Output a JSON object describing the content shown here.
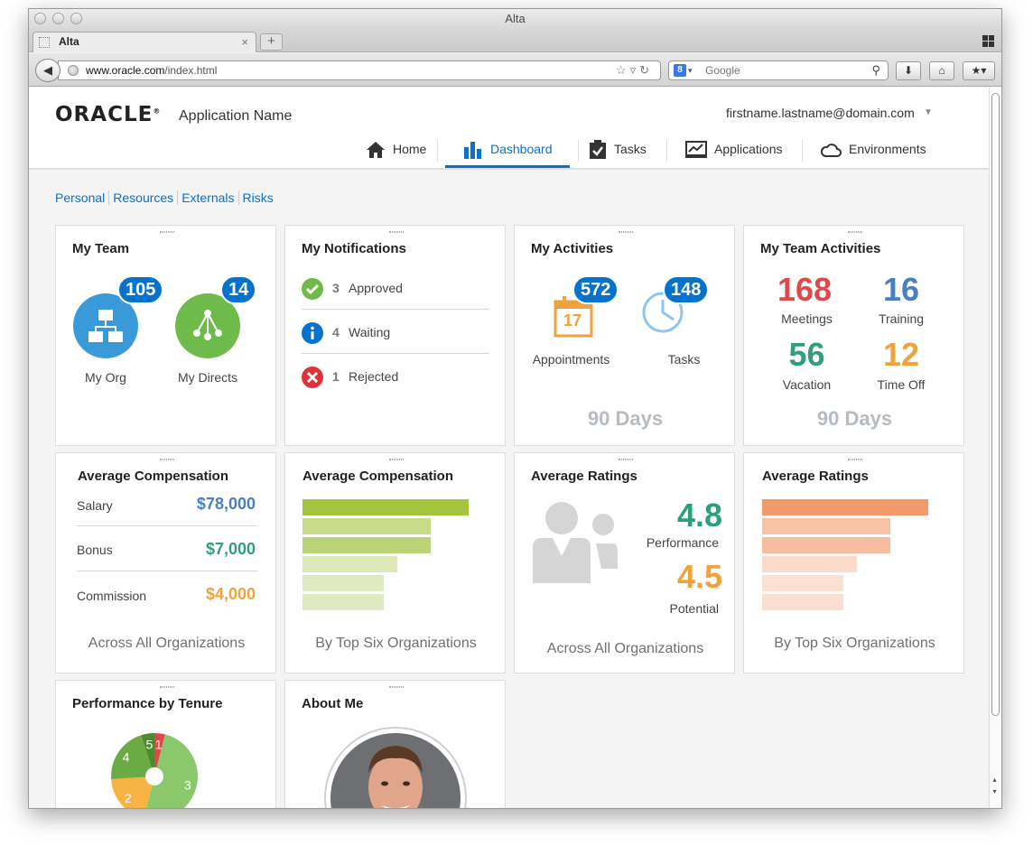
{
  "browser": {
    "window_title": "Alta",
    "tab_title": "Alta",
    "tab_close": "×",
    "new_tab": "+",
    "url_host": "www.oracle.com",
    "url_path": "/index.html",
    "search_placeholder": "Google"
  },
  "app": {
    "logo": "ORACLE",
    "logo_mark": "®",
    "name": "Application Name",
    "user": "firstname.lastname@domain.com",
    "nav": [
      {
        "label": "Home",
        "icon": "home-icon"
      },
      {
        "label": "Dashboard",
        "icon": "bar-chart-icon",
        "active": true
      },
      {
        "label": "Tasks",
        "icon": "clipboard-check-icon"
      },
      {
        "label": "Applications",
        "icon": "monitor-chart-icon"
      },
      {
        "label": "Environments",
        "icon": "cloud-icon"
      }
    ],
    "subnav": [
      "Personal",
      "Resources",
      "Externals",
      "Risks"
    ]
  },
  "colors": {
    "accent": "#0572ce",
    "green": "#2ea079",
    "orange": "#f0a23c",
    "red": "#e0484a",
    "blue": "#4a7fc1",
    "gray": "#b6bcc2"
  },
  "cards": {
    "my_team": {
      "title": "My Team",
      "org": {
        "label": "My Org",
        "count": "105"
      },
      "directs": {
        "label": "My Directs",
        "count": "14"
      }
    },
    "notifications": {
      "title": "My Notifications",
      "items": [
        {
          "count": "3",
          "label": "Approved",
          "icon": "check-circle-icon"
        },
        {
          "count": "4",
          "label": "Waiting",
          "icon": "info-circle-icon"
        },
        {
          "count": "1",
          "label": "Rejected",
          "icon": "x-circle-icon"
        }
      ]
    },
    "activities": {
      "title": "My Activities",
      "appointments": {
        "label": "Appointments",
        "count": "572",
        "day": "17"
      },
      "tasks": {
        "label": "Tasks",
        "count": "148"
      },
      "period": "90 Days"
    },
    "team_activities": {
      "title": "My Team Activities",
      "stats": [
        {
          "value": "168",
          "label": "Meetings",
          "color": "#e0484a"
        },
        {
          "value": "16",
          "label": "Training",
          "color": "#4a7fc1"
        },
        {
          "value": "56",
          "label": "Vacation",
          "color": "#2ea079"
        },
        {
          "value": "12",
          "label": "Time Off",
          "color": "#f0a23c"
        }
      ],
      "period": "90 Days"
    },
    "avg_comp_list": {
      "title": "Average Compensation",
      "rows": [
        {
          "label": "Salary",
          "value": "$78,000",
          "color": "#4a7fc1"
        },
        {
          "label": "Bonus",
          "value": "$7,000",
          "color": "#2ea079"
        },
        {
          "label": "Commission",
          "value": "$4,000",
          "color": "#f0a23c"
        }
      ],
      "footer": "Across All Organizations"
    },
    "avg_comp_bars": {
      "title": "Average Compensation",
      "footer": "By Top Six Organizations"
    },
    "avg_ratings_list": {
      "title": "Average Ratings",
      "performance": {
        "value": "4.8",
        "label": "Performance"
      },
      "potential": {
        "value": "4.5",
        "label": "Potential"
      },
      "footer": "Across All Organizations"
    },
    "avg_ratings_bars": {
      "title": "Average Ratings",
      "footer": "By Top Six Organizations"
    },
    "tenure": {
      "title": "Performance by Tenure"
    },
    "about": {
      "title": "About Me"
    }
  },
  "chart_data": [
    {
      "type": "bar",
      "orientation": "horizontal",
      "title": "Average Compensation",
      "values": [
        100,
        77,
        77,
        57,
        49,
        49
      ],
      "colors": [
        "#a4c43d",
        "#c8db8a",
        "#bcd478",
        "#dde9b9",
        "#e0eac1",
        "#dfe9bf"
      ]
    },
    {
      "type": "bar",
      "orientation": "horizontal",
      "title": "Average Ratings",
      "values": [
        100,
        77,
        77,
        57,
        49,
        49
      ],
      "colors": [
        "#f39a6d",
        "#f8c2a6",
        "#f7bda0",
        "#fbdccc",
        "#fbe1d3",
        "#fbe0d2"
      ]
    },
    {
      "type": "pie",
      "title": "Performance by Tenure",
      "slices": [
        {
          "label": "1",
          "value": 4,
          "color": "#e0484a"
        },
        {
          "label": "3",
          "value": 50,
          "color": "#8bc76b"
        },
        {
          "label": "2",
          "value": 20,
          "color": "#f7b343"
        },
        {
          "label": "4",
          "value": 21,
          "color": "#6aab43"
        },
        {
          "label": "5",
          "value": 5,
          "color": "#4e8a2e"
        }
      ]
    }
  ]
}
